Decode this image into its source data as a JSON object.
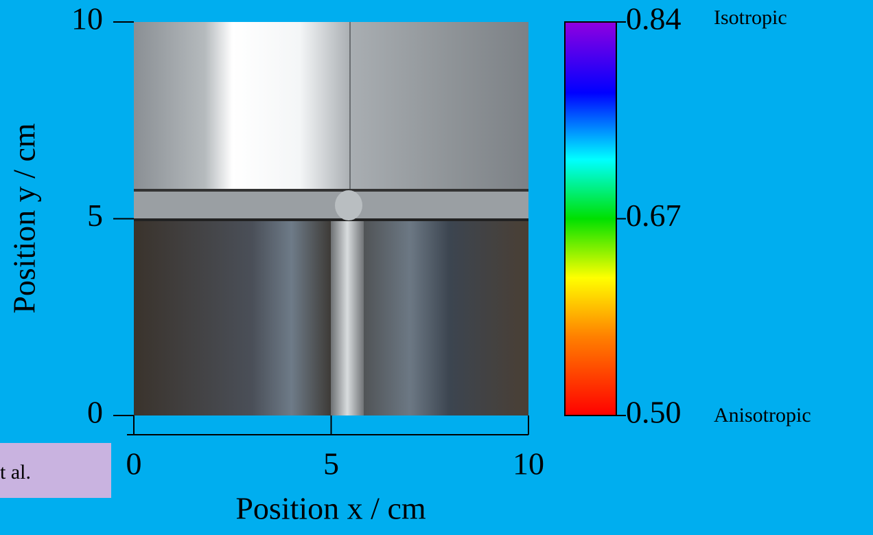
{
  "chart_data": {
    "type": "image",
    "x_label": "Position x / cm",
    "y_label": "Position y / cm",
    "xlim": [
      0,
      10
    ],
    "xticks": [
      0,
      5,
      10
    ],
    "ylim": [
      0,
      10
    ],
    "yticks": [
      0,
      5,
      10
    ],
    "colorbar": {
      "lim": [
        0.5,
        0.84
      ],
      "ticks": [
        {
          "value": 0.5,
          "label": "0.50"
        },
        0.67,
        0.84
      ],
      "top_label": "Isotropic",
      "bottom_label": "Anisotropic",
      "top_color": "#2020ff",
      "bottom_color": "#ff1010"
    },
    "annotation": "t al."
  }
}
